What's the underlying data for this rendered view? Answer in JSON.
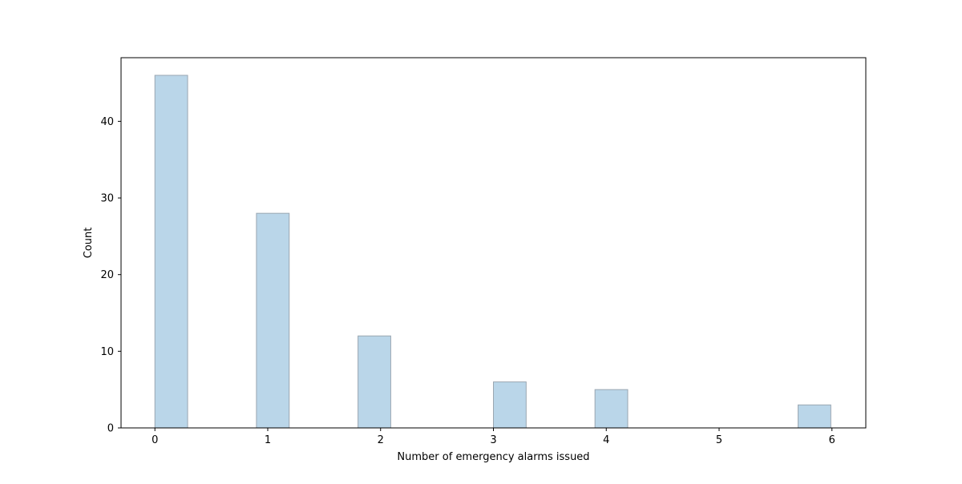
{
  "chart_data": {
    "type": "bar",
    "title": "",
    "xlabel": "Number of emergency alarms issued",
    "ylabel": "Count",
    "bins": [
      {
        "x_start": 0.0,
        "x_end": 0.29,
        "count": 46
      },
      {
        "x_start": 0.9,
        "x_end": 1.19,
        "count": 28
      },
      {
        "x_start": 1.8,
        "x_end": 2.09,
        "count": 12
      },
      {
        "x_start": 3.0,
        "x_end": 3.29,
        "count": 6
      },
      {
        "x_start": 3.9,
        "x_end": 4.19,
        "count": 5
      },
      {
        "x_start": 5.7,
        "x_end": 5.99,
        "count": 3
      }
    ],
    "xlim": [
      -0.3,
      6.3
    ],
    "ylim": [
      0,
      48.3
    ],
    "x_ticks": [
      0,
      1,
      2,
      3,
      4,
      5,
      6
    ],
    "y_ticks": [
      0,
      10,
      20,
      30,
      40
    ],
    "grid": false,
    "colors": {
      "bar_fill": "#bad6e9",
      "bar_edge": "#9aa6b1",
      "axes": "#000000"
    }
  }
}
